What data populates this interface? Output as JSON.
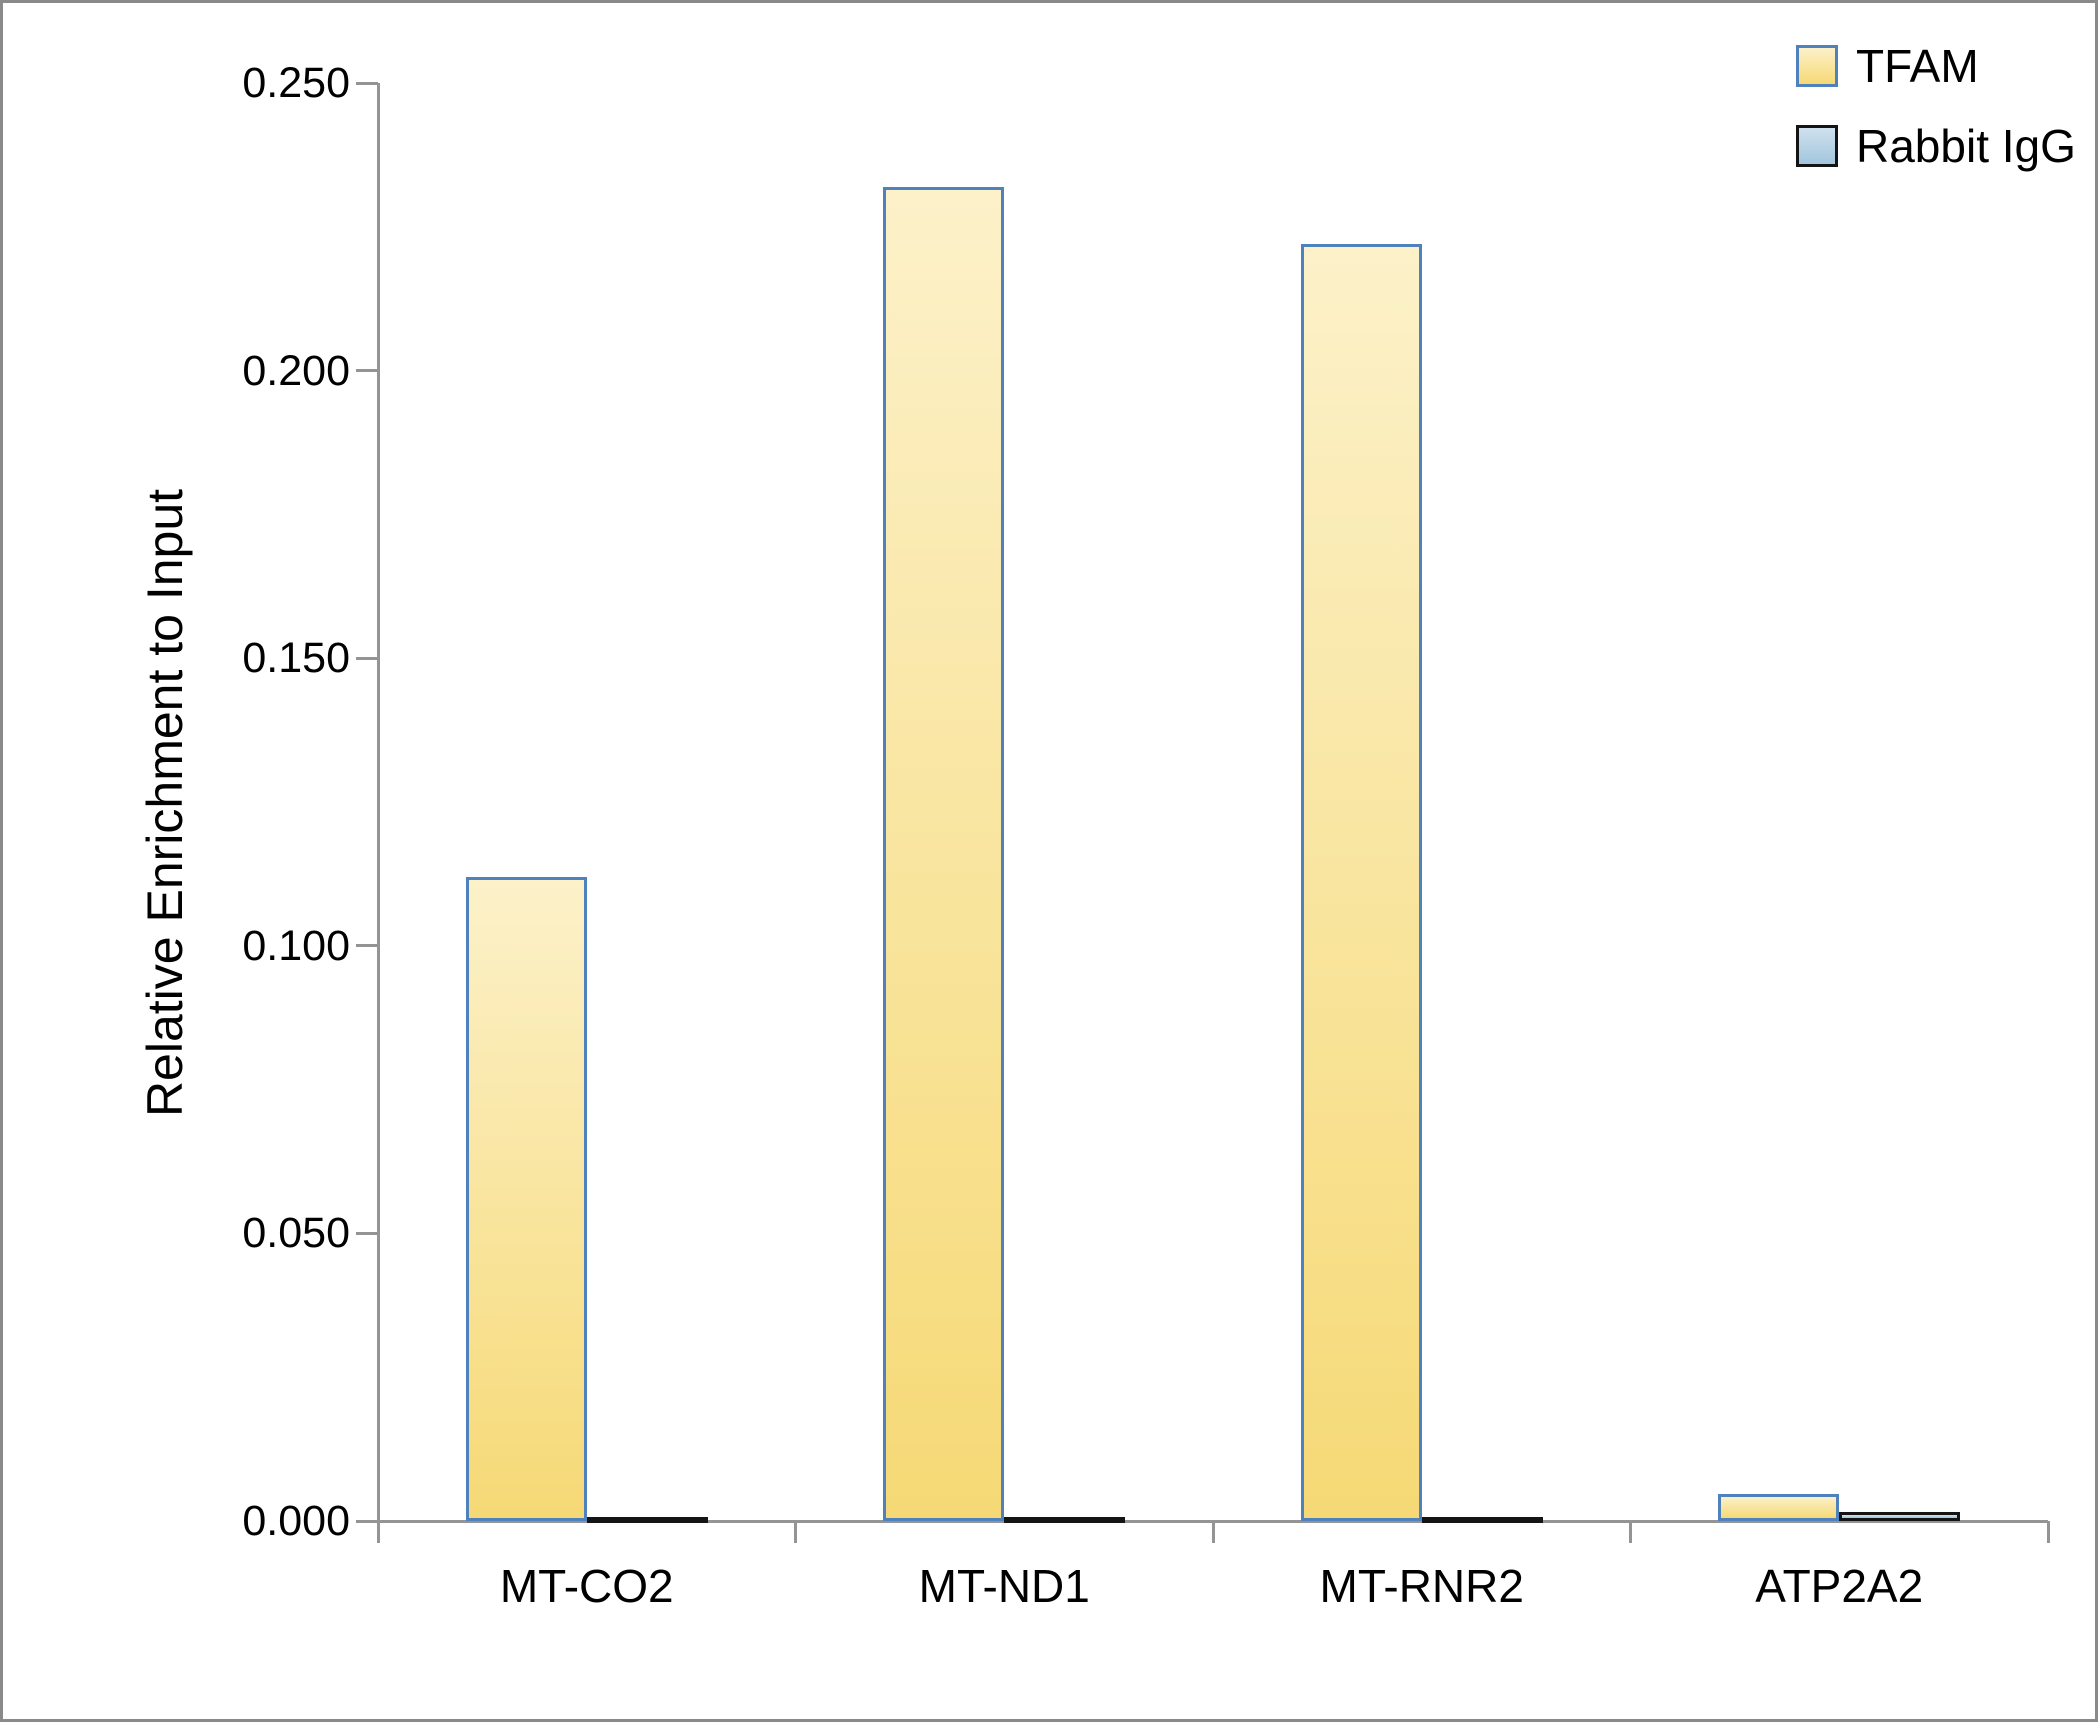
{
  "figure": {
    "background": "#ffffff",
    "border_color": "#8a8a8a",
    "axis_color": "#949494",
    "text_color": "#000000"
  },
  "chart_data": {
    "type": "bar",
    "title": "",
    "xlabel": "",
    "ylabel": "Relative Enrichment to Input",
    "categories": [
      "MT-CO2",
      "MT-ND1",
      "MT-RNR2",
      "ATP2A2"
    ],
    "series": [
      {
        "name": "TFAM",
        "values": [
          0.112,
          0.232,
          0.222,
          0.0047
        ],
        "fill_top": "#fcf1c9",
        "fill_bottom": "#f6d976",
        "border_color": "#4f81bd"
      },
      {
        "name": "Rabbit IgG",
        "values": [
          0.0005,
          0.0005,
          0.0005,
          0.0016
        ],
        "fill_top": "#cfe1ee",
        "fill_bottom": "#a3c6de",
        "border_color": "#141414"
      }
    ],
    "ylim": [
      0,
      0.25
    ],
    "ytick_step": 0.05,
    "ytick_labels": [
      "0.000",
      "0.050",
      "0.100",
      "0.150",
      "0.200",
      "0.250"
    ],
    "grid": false,
    "legend_position": "top-right"
  }
}
